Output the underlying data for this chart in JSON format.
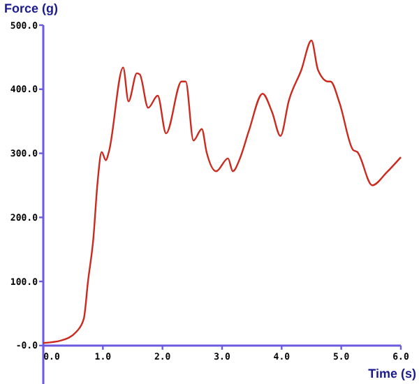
{
  "chart_data": {
    "type": "line",
    "xlabel": "Time (s)",
    "ylabel": "Force (g)",
    "x": [
      0,
      0.3,
      0.56,
      0.68,
      0.75,
      0.84,
      0.91,
      0.98,
      1.05,
      1.1,
      1.34,
      1.43,
      1.57,
      1.62,
      1.76,
      1.92,
      2.06,
      2.32,
      2.39,
      2.52,
      2.66,
      2.74,
      2.9,
      3.1,
      3.18,
      3.3,
      3.45,
      3.68,
      3.84,
      3.98,
      4.12,
      4.33,
      4.5,
      4.61,
      4.78,
      4.82,
      4.97,
      5.2,
      5.27,
      5.52,
      5.76,
      6.0
    ],
    "series": [
      {
        "color": "#cc2a1e",
        "values": [
          4,
          8,
          22,
          42,
          100,
          167,
          254,
          302,
          289,
          302,
          434,
          381,
          425,
          423,
          371,
          390,
          331,
          412,
          412,
          320,
          338,
          302,
          272,
          292,
          272,
          292,
          335,
          393,
          364,
          327,
          382,
          430,
          476,
          430,
          412,
          412,
          379,
          305,
          302,
          250,
          270,
          294
        ]
      }
    ],
    "xlim": [
      0,
      6
    ],
    "ylim": [
      -60,
      500
    ],
    "xticks": [
      {
        "value": 0,
        "label": "0.0"
      },
      {
        "value": 1,
        "label": "1.0"
      },
      {
        "value": 2,
        "label": "2.0"
      },
      {
        "value": 3,
        "label": "3.0"
      },
      {
        "value": 4,
        "label": "4.0"
      },
      {
        "value": 5,
        "label": "5.0"
      },
      {
        "value": 6,
        "label": "6.0"
      }
    ],
    "yticks": [
      {
        "value": 0,
        "label": "-0.0"
      },
      {
        "value": 100,
        "label": "100.0"
      },
      {
        "value": 200,
        "label": "200.0"
      },
      {
        "value": 300,
        "label": "300.0"
      },
      {
        "value": 400,
        "label": "400.0"
      },
      {
        "value": 500,
        "label": "500.0"
      }
    ],
    "grid": false,
    "marker": "none",
    "line_style": "solid"
  }
}
